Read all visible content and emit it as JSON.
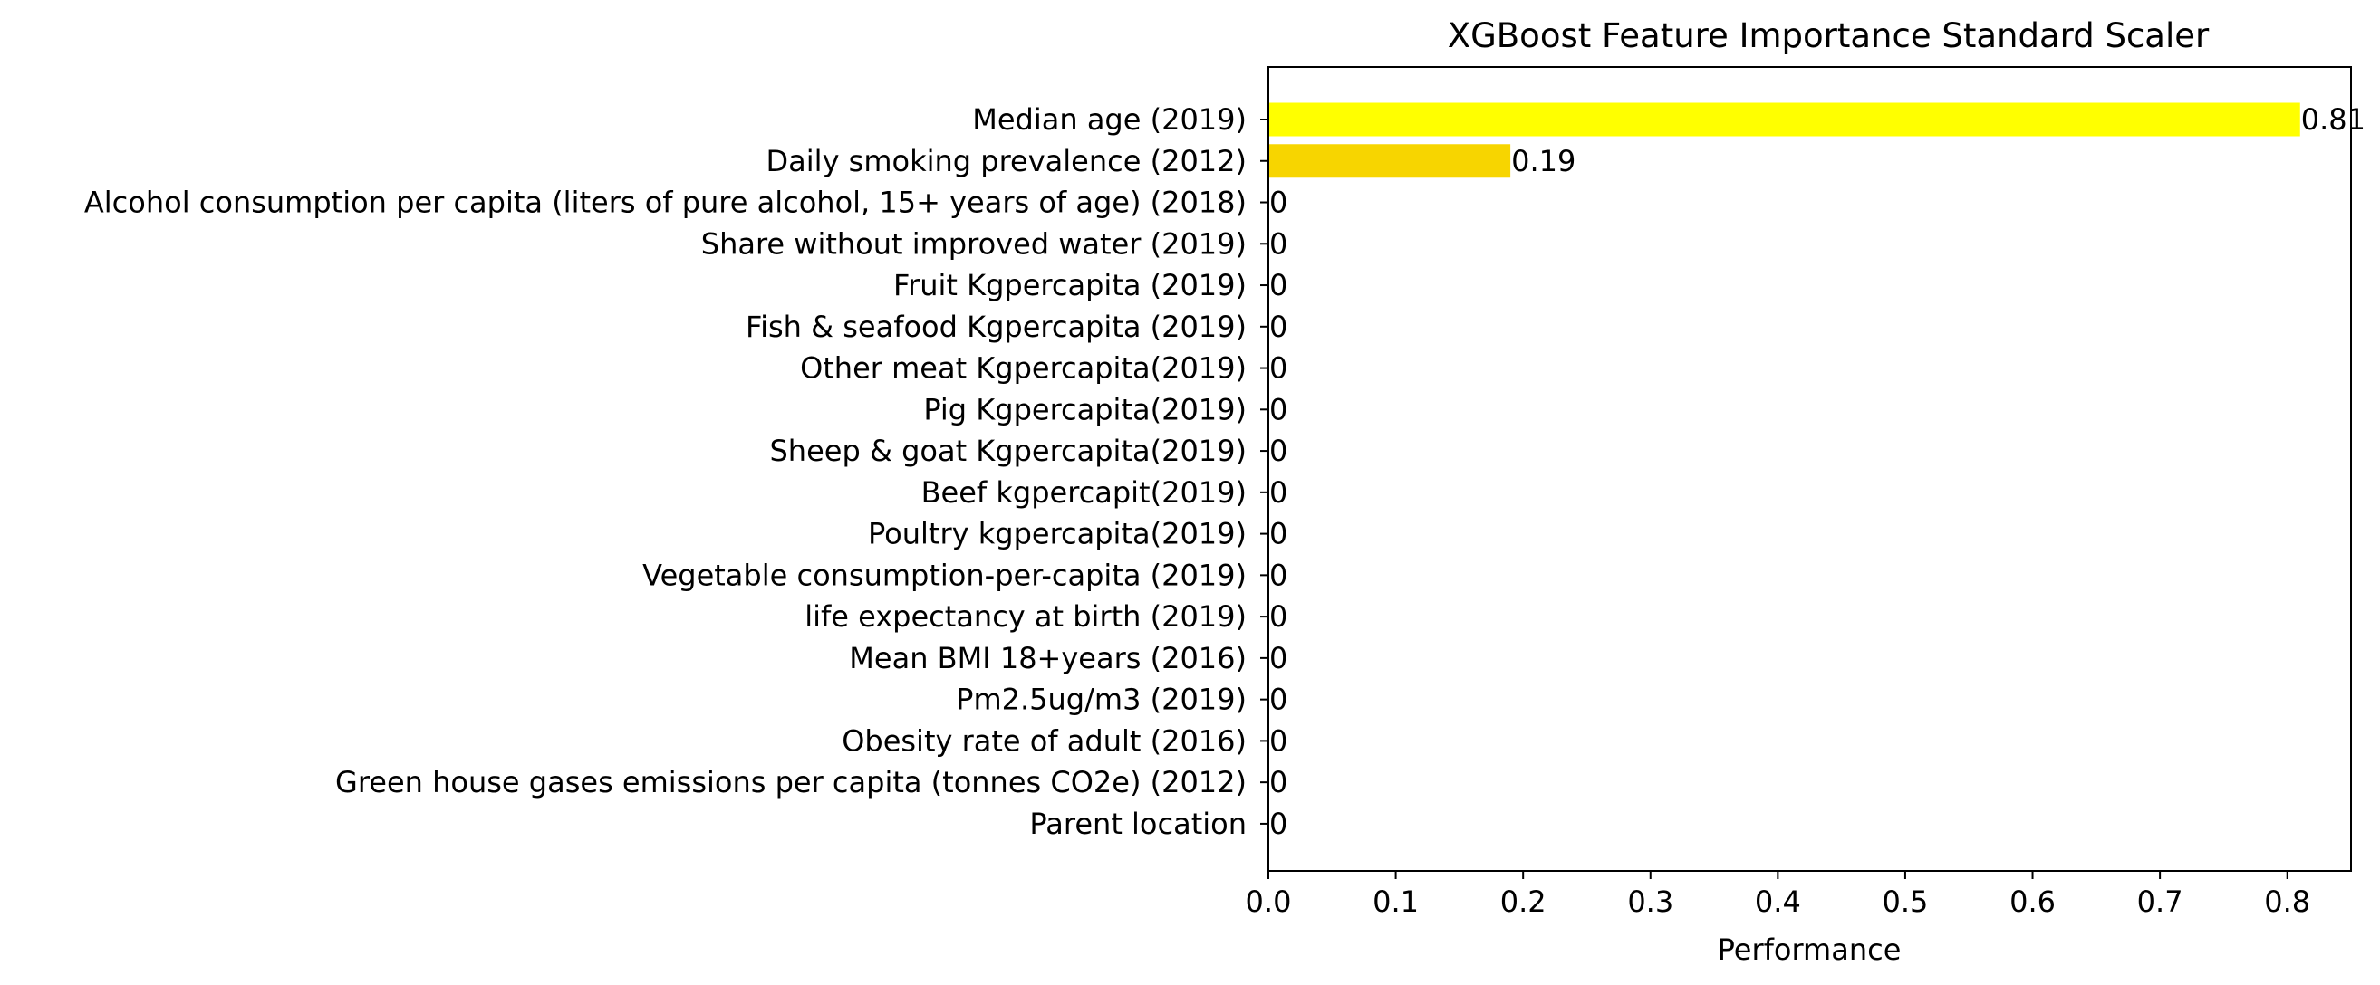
{
  "chart_data": {
    "type": "bar",
    "orientation": "horizontal",
    "title": "XGBoost Feature Importance Standard Scaler",
    "xlabel": "Performance",
    "ylabel": "",
    "xlim": [
      0,
      0.85
    ],
    "xticks": [
      "0.0",
      "0.1",
      "0.2",
      "0.3",
      "0.4",
      "0.5",
      "0.6",
      "0.7",
      "0.8"
    ],
    "xtick_values": [
      0,
      0.1,
      0.2,
      0.3,
      0.4,
      0.5,
      0.6,
      0.7,
      0.8
    ],
    "grid": false,
    "legend": "none",
    "categories": [
      "Median age (2019)",
      "Daily smoking prevalence (2012)",
      "Alcohol consumption per capita (liters of pure alcohol, 15+ years of age) (2018) ",
      "Share without improved water (2019)",
      "Fruit Kgpercapita (2019)",
      "Fish & seafood Kgpercapita (2019)",
      "Other meat Kgpercapita(2019)",
      "Pig Kgpercapita(2019)",
      "Sheep & goat Kgpercapita(2019)",
      "Beef kgpercapit(2019)",
      "Poultry kgpercapita(2019)",
      "Vegetable consumption-per-capita (2019)",
      "life expectancy at birth (2019)",
      "Mean BMI 18+years (2016)",
      "Pm2.5ug/m3 (2019)",
      "Obesity rate of adult (2016)",
      "Green house gases emissions per capita (tonnes CO2e) (2012)",
      "Parent location"
    ],
    "values": [
      0.81,
      0.19,
      0,
      0,
      0,
      0,
      0,
      0,
      0,
      0,
      0,
      0,
      0,
      0,
      0,
      0,
      0,
      0
    ],
    "data_labels": [
      "0.81",
      "0.19",
      "0",
      "0",
      "0",
      "0",
      "0",
      "0",
      "0",
      "0",
      "0",
      "0",
      "0",
      "0",
      "0",
      "0",
      "0",
      "0"
    ],
    "colors": {
      "high": "#ffff00",
      "low": "#f7d500",
      "axis": "#000000",
      "text": "#000000"
    }
  }
}
